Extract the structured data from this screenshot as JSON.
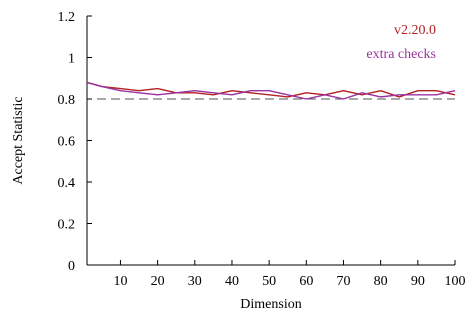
{
  "chart_data": {
    "type": "line",
    "xlabel": "Dimension",
    "ylabel": "Accept Statistic",
    "xlim": [
      1,
      100
    ],
    "ylim": [
      0,
      1.2
    ],
    "xticks": [
      10,
      20,
      30,
      40,
      50,
      60,
      70,
      80,
      90,
      100
    ],
    "yticks": [
      0,
      0.2,
      0.4,
      0.6,
      0.8,
      1,
      1.2
    ],
    "grid": false,
    "legend_position": "top-right",
    "reference_line": {
      "y": 0.8,
      "style": "dashed",
      "color": "#555555"
    },
    "x": [
      1,
      5,
      10,
      15,
      20,
      25,
      30,
      35,
      40,
      45,
      50,
      55,
      60,
      65,
      70,
      75,
      80,
      85,
      90,
      95,
      100
    ],
    "series": [
      {
        "name": "v2.20.0",
        "color": "#b22222",
        "values": [
          0.88,
          0.86,
          0.85,
          0.84,
          0.85,
          0.83,
          0.83,
          0.82,
          0.84,
          0.83,
          0.82,
          0.81,
          0.83,
          0.82,
          0.84,
          0.82,
          0.84,
          0.81,
          0.84,
          0.84,
          0.82
        ]
      },
      {
        "name": "extra checks",
        "color": "#9b30a0",
        "values": [
          0.88,
          0.86,
          0.84,
          0.83,
          0.82,
          0.83,
          0.84,
          0.83,
          0.82,
          0.84,
          0.84,
          0.82,
          0.8,
          0.82,
          0.8,
          0.83,
          0.81,
          0.82,
          0.82,
          0.82,
          0.84
        ]
      }
    ]
  }
}
